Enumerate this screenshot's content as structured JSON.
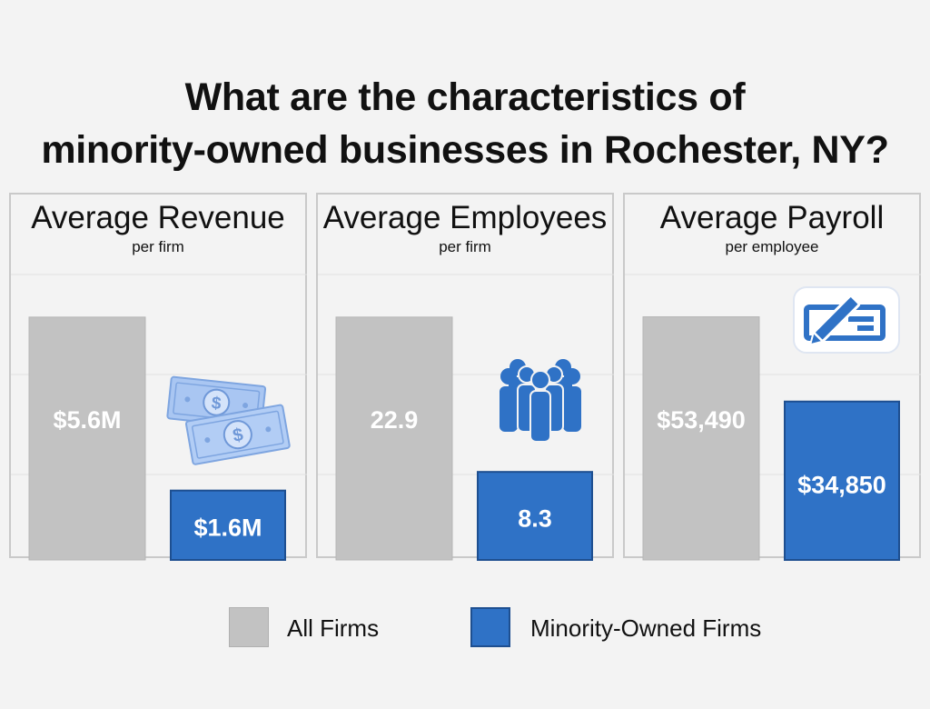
{
  "title": {
    "line1": "What are the characteristics of",
    "line2": "minority-owned businesses in Rochester, NY?"
  },
  "colors": {
    "all_firms": "#c2c2c2",
    "minority_owned": "#2f72c6",
    "grid": "#e2e2e2",
    "panel_border": "#c9c9c9"
  },
  "legend": {
    "all_firms": "All Firms",
    "minority_owned": "Minority-Owned Firms"
  },
  "chart_data": [
    {
      "type": "bar",
      "title": "Average Revenue",
      "subtitle": "per firm",
      "categories": [
        "All Firms",
        "Minority-Owned Firms"
      ],
      "values": [
        5.6,
        1.6
      ],
      "labels": [
        "$5.6M",
        "$1.6M"
      ],
      "unit": "$M",
      "ylim": [
        0,
        6.75
      ],
      "grid": true,
      "icon": "money-bills-icon"
    },
    {
      "type": "bar",
      "title": "Average Employees",
      "subtitle": "per firm",
      "categories": [
        "All Firms",
        "Minority-Owned Firms"
      ],
      "values": [
        22.9,
        8.3
      ],
      "labels": [
        "22.9",
        "8.3"
      ],
      "unit": "employees",
      "ylim": [
        0,
        27.6
      ],
      "grid": true,
      "icon": "people-group-icon"
    },
    {
      "type": "bar",
      "title": "Average Payroll",
      "subtitle": "per employee",
      "categories": [
        "All Firms",
        "Minority-Owned Firms"
      ],
      "values": [
        53490,
        34850
      ],
      "labels": [
        "$53,490",
        "$34,850"
      ],
      "unit": "$",
      "ylim": [
        0,
        64400
      ],
      "grid": true,
      "icon": "check-pencil-icon"
    }
  ]
}
